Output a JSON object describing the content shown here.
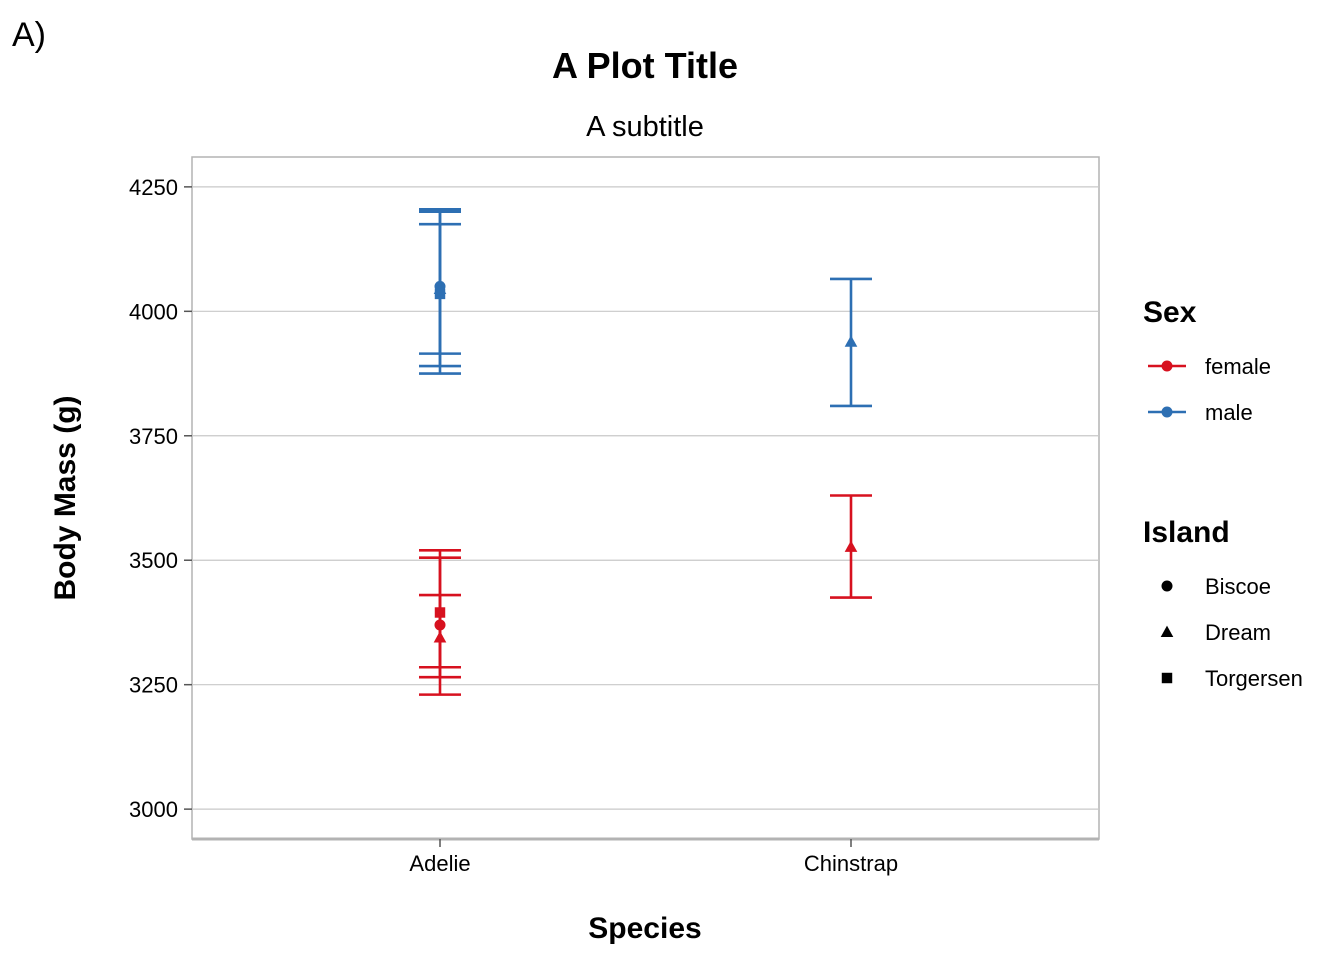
{
  "tag": "A)",
  "chart_data": {
    "type": "errorbar",
    "title": "A Plot Title",
    "subtitle": "A subtitle",
    "xlabel": "Species",
    "ylabel": "Body Mass (g)",
    "categories": [
      "Adelie",
      "Chinstrap"
    ],
    "yticks": [
      3000,
      3250,
      3500,
      3750,
      4000,
      4250
    ],
    "ylim": [
      2940,
      4310
    ],
    "grid": "horizontal",
    "legend_position": "right",
    "series": [
      {
        "sex": "female",
        "island": "Biscoe",
        "category": "Adelie",
        "mean": 3370,
        "lower": 3230,
        "upper": 3505
      },
      {
        "sex": "female",
        "island": "Dream",
        "category": "Adelie",
        "mean": 3345,
        "lower": 3265,
        "upper": 3430
      },
      {
        "sex": "female",
        "island": "Torgersen",
        "category": "Adelie",
        "mean": 3395,
        "lower": 3285,
        "upper": 3520
      },
      {
        "sex": "male",
        "island": "Biscoe",
        "category": "Adelie",
        "mean": 4050,
        "lower": 3890,
        "upper": 4205
      },
      {
        "sex": "male",
        "island": "Dream",
        "category": "Adelie",
        "mean": 4045,
        "lower": 3915,
        "upper": 4175
      },
      {
        "sex": "male",
        "island": "Torgersen",
        "category": "Adelie",
        "mean": 4035,
        "lower": 3875,
        "upper": 4200
      },
      {
        "sex": "female",
        "island": "Dream",
        "category": "Chinstrap",
        "mean": 3527,
        "lower": 3425,
        "upper": 3630
      },
      {
        "sex": "male",
        "island": "Dream",
        "category": "Chinstrap",
        "mean": 3939,
        "lower": 3810,
        "upper": 4065
      }
    ],
    "legend_sex": {
      "title": "Sex",
      "items": [
        {
          "label": "female",
          "color": "#d7111f"
        },
        {
          "label": "male",
          "color": "#2d6fb3"
        }
      ]
    },
    "legend_island": {
      "title": "Island",
      "items": [
        {
          "label": "Biscoe",
          "shape": "circle"
        },
        {
          "label": "Dream",
          "shape": "triangle"
        },
        {
          "label": "Torgersen",
          "shape": "square"
        }
      ]
    }
  }
}
